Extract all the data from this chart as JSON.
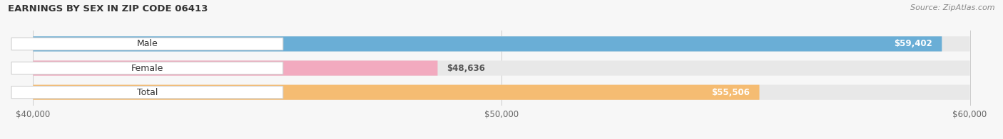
{
  "title": "EARNINGS BY SEX IN ZIP CODE 06413",
  "source": "Source: ZipAtlas.com",
  "categories": [
    "Male",
    "Female",
    "Total"
  ],
  "values": [
    59402,
    48636,
    55506
  ],
  "bar_colors": [
    "#6aaed6",
    "#f2aabf",
    "#f5bc72"
  ],
  "bar_bg_colors": [
    "#e8e8e8",
    "#e8e8e8",
    "#e8e8e8"
  ],
  "label_in_bar": [
    true,
    false,
    true
  ],
  "label_colors_in": [
    "#ffffff",
    "#555555",
    "#ffffff"
  ],
  "xmin": 40000,
  "xmax": 60000,
  "xticks": [
    40000,
    50000,
    60000
  ],
  "xtick_labels": [
    "$40,000",
    "$50,000",
    "$60,000"
  ],
  "figsize": [
    14.06,
    1.96
  ],
  "dpi": 100,
  "bg_color": "#f7f7f7"
}
